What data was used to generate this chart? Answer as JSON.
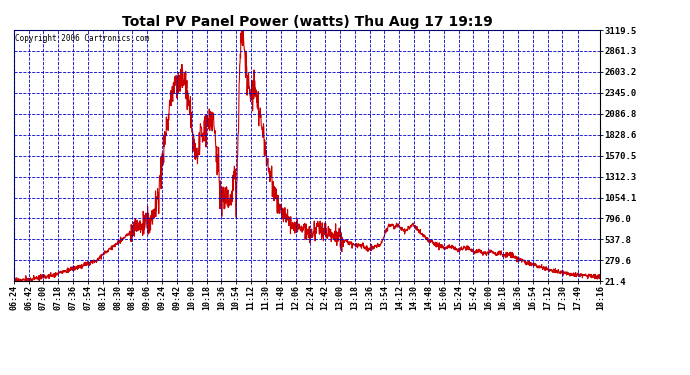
{
  "title": "Total PV Panel Power (watts) Thu Aug 17 19:19",
  "copyright": "Copyright 2006 Cartronics.com",
  "line_color": "#cc0000",
  "bg_color": "#ffffff",
  "plot_bg_color": "#ffffff",
  "grid_color": "#0000cc",
  "title_color": "#000000",
  "yticks": [
    21.4,
    279.6,
    537.8,
    796.0,
    1054.1,
    1312.3,
    1570.5,
    1828.6,
    2086.8,
    2345.0,
    2603.2,
    2861.3,
    3119.5
  ],
  "ylim": [
    21.4,
    3119.5
  ],
  "xtick_labels": [
    "06:24",
    "06:42",
    "07:00",
    "07:18",
    "07:36",
    "07:54",
    "08:12",
    "08:30",
    "08:48",
    "09:06",
    "09:24",
    "09:42",
    "10:00",
    "10:18",
    "10:36",
    "10:54",
    "11:12",
    "11:30",
    "11:48",
    "12:06",
    "12:24",
    "12:42",
    "13:00",
    "13:18",
    "13:36",
    "13:54",
    "14:12",
    "14:30",
    "14:48",
    "15:06",
    "15:24",
    "15:42",
    "16:00",
    "16:18",
    "16:36",
    "16:54",
    "17:12",
    "17:30",
    "17:49",
    "18:16"
  ],
  "keypoints": [
    [
      0,
      30
    ],
    [
      10,
      35
    ],
    [
      20,
      45
    ],
    [
      30,
      60
    ],
    [
      40,
      80
    ],
    [
      50,
      100
    ],
    [
      60,
      140
    ],
    [
      70,
      170
    ],
    [
      80,
      200
    ],
    [
      90,
      240
    ],
    [
      100,
      280
    ],
    [
      108,
      350
    ],
    [
      114,
      400
    ],
    [
      118,
      430
    ],
    [
      122,
      460
    ],
    [
      126,
      500
    ],
    [
      130,
      530
    ],
    [
      134,
      560
    ],
    [
      138,
      590
    ],
    [
      142,
      610
    ],
    [
      144,
      640
    ],
    [
      146,
      660
    ],
    [
      148,
      680
    ],
    [
      150,
      700
    ],
    [
      152,
      720
    ],
    [
      154,
      700
    ],
    [
      156,
      680
    ],
    [
      158,
      700
    ],
    [
      160,
      720
    ],
    [
      162,
      740
    ],
    [
      164,
      750
    ],
    [
      166,
      760
    ],
    [
      168,
      800
    ],
    [
      170,
      850
    ],
    [
      172,
      900
    ],
    [
      174,
      1000
    ],
    [
      176,
      1150
    ],
    [
      178,
      1300
    ],
    [
      180,
      1500
    ],
    [
      182,
      1650
    ],
    [
      184,
      1800
    ],
    [
      186,
      1950
    ],
    [
      188,
      2100
    ],
    [
      190,
      2200
    ],
    [
      192,
      2300
    ],
    [
      194,
      2380
    ],
    [
      196,
      2420
    ],
    [
      198,
      2450
    ],
    [
      200,
      2480
    ],
    [
      202,
      2500
    ],
    [
      204,
      2520
    ],
    [
      206,
      2500
    ],
    [
      208,
      2460
    ],
    [
      210,
      2400
    ],
    [
      212,
      2300
    ],
    [
      214,
      2100
    ],
    [
      216,
      1900
    ],
    [
      218,
      1750
    ],
    [
      220,
      1600
    ],
    [
      222,
      1500
    ],
    [
      224,
      1650
    ],
    [
      226,
      1750
    ],
    [
      228,
      1800
    ],
    [
      230,
      1850
    ],
    [
      232,
      1900
    ],
    [
      234,
      1950
    ],
    [
      236,
      2000
    ],
    [
      238,
      2050
    ],
    [
      240,
      2100
    ],
    [
      242,
      2000
    ],
    [
      244,
      1800
    ],
    [
      246,
      1600
    ],
    [
      248,
      1400
    ],
    [
      250,
      1200
    ],
    [
      252,
      1000
    ],
    [
      254,
      1050
    ],
    [
      256,
      1100
    ],
    [
      258,
      1150
    ],
    [
      260,
      1100
    ],
    [
      262,
      1000
    ],
    [
      264,
      950
    ],
    [
      266,
      1200
    ],
    [
      268,
      1500
    ],
    [
      270,
      900
    ],
    [
      272,
      1800
    ],
    [
      274,
      2500
    ],
    [
      276,
      3050
    ],
    [
      278,
      3000
    ],
    [
      280,
      2900
    ],
    [
      282,
      2700
    ],
    [
      284,
      2500
    ],
    [
      286,
      2400
    ],
    [
      288,
      2300
    ],
    [
      290,
      2350
    ],
    [
      292,
      2400
    ],
    [
      294,
      2380
    ],
    [
      296,
      2200
    ],
    [
      298,
      2100
    ],
    [
      300,
      2000
    ],
    [
      302,
      1900
    ],
    [
      304,
      1750
    ],
    [
      306,
      1600
    ],
    [
      308,
      1500
    ],
    [
      310,
      1400
    ],
    [
      312,
      1300
    ],
    [
      314,
      1200
    ],
    [
      316,
      1150
    ],
    [
      318,
      1100
    ],
    [
      320,
      1000
    ],
    [
      322,
      950
    ],
    [
      324,
      900
    ],
    [
      326,
      850
    ],
    [
      328,
      820
    ],
    [
      330,
      800
    ],
    [
      332,
      780
    ],
    [
      334,
      760
    ],
    [
      336,
      750
    ],
    [
      338,
      730
    ],
    [
      340,
      720
    ],
    [
      342,
      710
    ],
    [
      344,
      690
    ],
    [
      346,
      680
    ],
    [
      348,
      670
    ],
    [
      350,
      660
    ],
    [
      352,
      650
    ],
    [
      354,
      640
    ],
    [
      356,
      630
    ],
    [
      358,
      620
    ],
    [
      360,
      610
    ],
    [
      362,
      620
    ],
    [
      364,
      630
    ],
    [
      366,
      640
    ],
    [
      368,
      650
    ],
    [
      370,
      660
    ],
    [
      372,
      670
    ],
    [
      374,
      660
    ],
    [
      376,
      650
    ],
    [
      378,
      640
    ],
    [
      380,
      630
    ],
    [
      382,
      620
    ],
    [
      384,
      610
    ],
    [
      386,
      600
    ],
    [
      388,
      590
    ],
    [
      390,
      580
    ],
    [
      392,
      570
    ],
    [
      394,
      560
    ],
    [
      396,
      550
    ],
    [
      398,
      540
    ],
    [
      400,
      530
    ],
    [
      402,
      520
    ],
    [
      404,
      510
    ],
    [
      406,
      500
    ],
    [
      408,
      490
    ],
    [
      410,
      485
    ],
    [
      412,
      480
    ],
    [
      414,
      475
    ],
    [
      416,
      470
    ],
    [
      418,
      465
    ],
    [
      420,
      460
    ],
    [
      422,
      455
    ],
    [
      424,
      450
    ],
    [
      426,
      440
    ],
    [
      428,
      430
    ],
    [
      430,
      420
    ],
    [
      432,
      410
    ],
    [
      434,
      420
    ],
    [
      436,
      430
    ],
    [
      438,
      440
    ],
    [
      440,
      450
    ],
    [
      442,
      460
    ],
    [
      444,
      470
    ],
    [
      446,
      500
    ],
    [
      448,
      540
    ],
    [
      450,
      580
    ],
    [
      452,
      640
    ],
    [
      454,
      680
    ],
    [
      456,
      700
    ],
    [
      458,
      720
    ],
    [
      460,
      700
    ],
    [
      462,
      680
    ],
    [
      464,
      700
    ],
    [
      466,
      720
    ],
    [
      468,
      700
    ],
    [
      470,
      680
    ],
    [
      472,
      660
    ],
    [
      474,
      640
    ],
    [
      476,
      650
    ],
    [
      478,
      660
    ],
    [
      480,
      680
    ],
    [
      482,
      700
    ],
    [
      484,
      720
    ],
    [
      486,
      700
    ],
    [
      488,
      680
    ],
    [
      490,
      660
    ],
    [
      492,
      640
    ],
    [
      494,
      620
    ],
    [
      496,
      600
    ],
    [
      498,
      580
    ],
    [
      500,
      560
    ],
    [
      502,
      540
    ],
    [
      504,
      520
    ],
    [
      506,
      510
    ],
    [
      508,
      500
    ],
    [
      510,
      490
    ],
    [
      512,
      480
    ],
    [
      514,
      470
    ],
    [
      516,
      460
    ],
    [
      518,
      450
    ],
    [
      520,
      440
    ],
    [
      522,
      430
    ],
    [
      524,
      420
    ],
    [
      526,
      430
    ],
    [
      528,
      440
    ],
    [
      530,
      450
    ],
    [
      532,
      440
    ],
    [
      534,
      430
    ],
    [
      536,
      420
    ],
    [
      538,
      410
    ],
    [
      540,
      400
    ],
    [
      542,
      410
    ],
    [
      544,
      420
    ],
    [
      546,
      430
    ],
    [
      548,
      440
    ],
    [
      550,
      430
    ],
    [
      552,
      420
    ],
    [
      554,
      410
    ],
    [
      556,
      400
    ],
    [
      558,
      390
    ],
    [
      560,
      380
    ],
    [
      562,
      390
    ],
    [
      564,
      400
    ],
    [
      566,
      390
    ],
    [
      568,
      380
    ],
    [
      570,
      370
    ],
    [
      572,
      360
    ],
    [
      574,
      370
    ],
    [
      576,
      380
    ],
    [
      578,
      390
    ],
    [
      580,
      380
    ],
    [
      582,
      370
    ],
    [
      584,
      360
    ],
    [
      586,
      350
    ],
    [
      588,
      360
    ],
    [
      590,
      370
    ],
    [
      592,
      360
    ],
    [
      594,
      350
    ],
    [
      596,
      340
    ],
    [
      598,
      350
    ],
    [
      600,
      360
    ],
    [
      602,
      350
    ],
    [
      604,
      340
    ],
    [
      606,
      330
    ],
    [
      608,
      320
    ],
    [
      610,
      310
    ],
    [
      612,
      300
    ],
    [
      614,
      290
    ],
    [
      616,
      280
    ],
    [
      618,
      270
    ],
    [
      620,
      260
    ],
    [
      622,
      250
    ],
    [
      624,
      240
    ],
    [
      626,
      235
    ],
    [
      628,
      230
    ],
    [
      630,
      225
    ],
    [
      632,
      220
    ],
    [
      634,
      210
    ],
    [
      636,
      200
    ],
    [
      638,
      195
    ],
    [
      640,
      190
    ],
    [
      642,
      185
    ],
    [
      644,
      180
    ],
    [
      646,
      175
    ],
    [
      648,
      170
    ],
    [
      650,
      165
    ],
    [
      652,
      160
    ],
    [
      654,
      155
    ],
    [
      656,
      150
    ],
    [
      658,
      145
    ],
    [
      660,
      140
    ],
    [
      662,
      135
    ],
    [
      664,
      130
    ],
    [
      666,
      125
    ],
    [
      668,
      120
    ],
    [
      670,
      118
    ],
    [
      672,
      115
    ],
    [
      674,
      112
    ],
    [
      676,
      110
    ],
    [
      678,
      108
    ],
    [
      680,
      105
    ],
    [
      682,
      103
    ],
    [
      685,
      100
    ],
    [
      690,
      95
    ],
    [
      695,
      90
    ],
    [
      700,
      85
    ],
    [
      705,
      80
    ],
    [
      708,
      78
    ],
    [
      712,
      75
    ]
  ]
}
